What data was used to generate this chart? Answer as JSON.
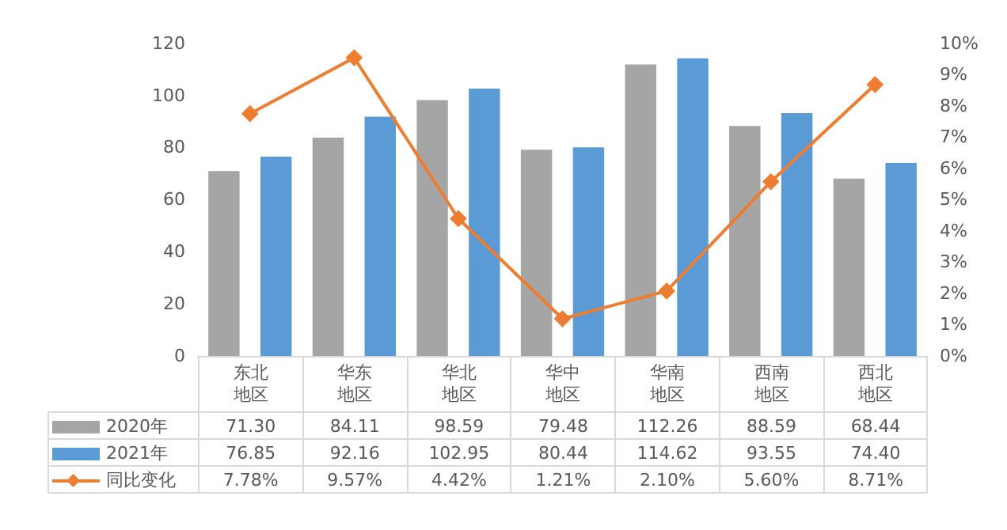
{
  "chart_data": {
    "type": "bar",
    "categories": [
      "东北地区",
      "华东地区",
      "华北地区",
      "华中地区",
      "华南地区",
      "西南地区",
      "西北地区"
    ],
    "series": [
      {
        "name": "2020年",
        "color": "#a5a5a5",
        "values": [
          71.3,
          84.11,
          98.59,
          79.48,
          112.26,
          88.59,
          68.44
        ],
        "value_labels": [
          "71.30",
          "84.11",
          "98.59",
          "79.48",
          "112.26",
          "88.59",
          "68.44"
        ]
      },
      {
        "name": "2021年",
        "color": "#5b9bd5",
        "values": [
          76.85,
          92.16,
          102.95,
          80.44,
          114.62,
          93.55,
          74.4
        ],
        "value_labels": [
          "76.85",
          "92.16",
          "102.95",
          "80.44",
          "114.62",
          "93.55",
          "74.40"
        ]
      },
      {
        "name": "同比变化",
        "type": "line",
        "axis": "y2",
        "color": "#ed7d31",
        "values": [
          7.78,
          9.57,
          4.42,
          1.21,
          2.1,
          5.6,
          8.71
        ],
        "value_labels": [
          "7.78%",
          "9.57%",
          "4.42%",
          "1.21%",
          "2.10%",
          "5.60%",
          "8.71%"
        ]
      }
    ],
    "ylim": [
      0,
      120
    ],
    "yticks": [
      0,
      20,
      40,
      60,
      80,
      100,
      120
    ],
    "y2lim": [
      0,
      10
    ],
    "y2ticks": [
      {
        "value": 0,
        "label": "0%"
      },
      {
        "value": 1,
        "label": "1%"
      },
      {
        "value": 2,
        "label": "2%"
      },
      {
        "value": 3,
        "label": "3%"
      },
      {
        "value": 4,
        "label": "4%"
      },
      {
        "value": 5,
        "label": "5%"
      },
      {
        "value": 6,
        "label": "6%"
      },
      {
        "value": 7,
        "label": "7%"
      },
      {
        "value": 8,
        "label": "8%"
      },
      {
        "value": 9,
        "label": "9%"
      },
      {
        "value": 10,
        "label": "10%"
      }
    ],
    "grid": false,
    "legend": "bottom",
    "marker": "diamond",
    "line_style": "solid"
  }
}
